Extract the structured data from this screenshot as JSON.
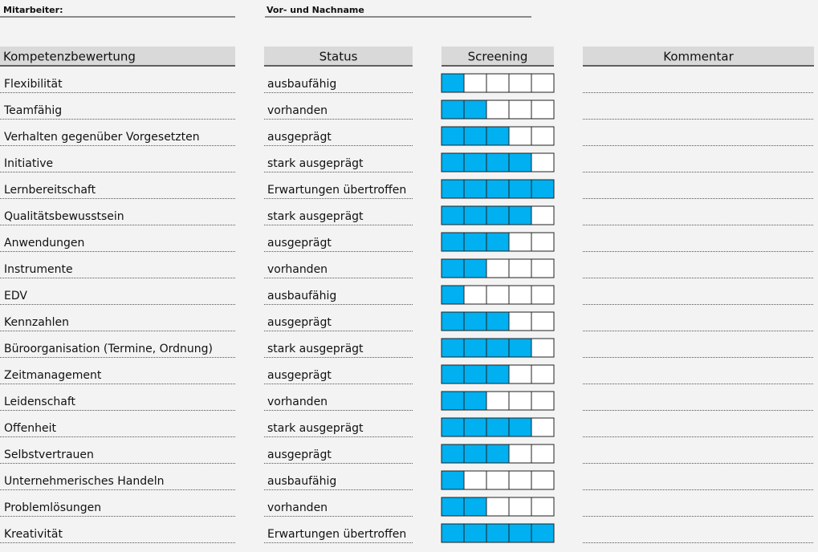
{
  "header": {
    "employee_label": "Mitarbeiter:",
    "name_label": "Vor- und Nachname"
  },
  "table": {
    "columns": [
      "Kompetenzbewertung",
      "Status",
      "Screening",
      "Kommentar"
    ],
    "screening_max": 5,
    "screening_color": "#00b0f0",
    "rows": [
      {
        "kompetenz": "Flexibilität",
        "status": "ausbaufähig",
        "screening": 1
      },
      {
        "kompetenz": "Teamfähig",
        "status": "vorhanden",
        "screening": 2
      },
      {
        "kompetenz": "Verhalten gegenüber Vorgesetzten",
        "status": "ausgeprägt",
        "screening": 3
      },
      {
        "kompetenz": "Initiative",
        "status": "stark ausgeprägt",
        "screening": 4
      },
      {
        "kompetenz": "Lernbereitschaft",
        "status": "Erwartungen übertroffen",
        "screening": 5
      },
      {
        "kompetenz": "Qualitätsbewusstsein",
        "status": "stark ausgeprägt",
        "screening": 4
      },
      {
        "kompetenz": "Anwendungen",
        "status": "ausgeprägt",
        "screening": 3
      },
      {
        "kompetenz": "Instrumente",
        "status": "vorhanden",
        "screening": 2
      },
      {
        "kompetenz": "EDV",
        "status": "ausbaufähig",
        "screening": 1
      },
      {
        "kompetenz": "Kennzahlen",
        "status": "ausgeprägt",
        "screening": 3
      },
      {
        "kompetenz": "Büroorganisation (Termine, Ordnung)",
        "status": "stark ausgeprägt",
        "screening": 4
      },
      {
        "kompetenz": "Zeitmanagement",
        "status": "ausgeprägt",
        "screening": 3
      },
      {
        "kompetenz": "Leidenschaft",
        "status": "vorhanden",
        "screening": 2
      },
      {
        "kompetenz": "Offenheit",
        "status": "stark ausgeprägt",
        "screening": 4
      },
      {
        "kompetenz": "Selbstvertrauen",
        "status": "ausgeprägt",
        "screening": 3
      },
      {
        "kompetenz": "Unternehmerisches Handeln",
        "status": "ausbaufähig",
        "screening": 1
      },
      {
        "kompetenz": "Problemlösungen",
        "status": "vorhanden",
        "screening": 2
      },
      {
        "kompetenz": "Kreativität",
        "status": "Erwartungen übertroffen",
        "screening": 5
      }
    ]
  }
}
